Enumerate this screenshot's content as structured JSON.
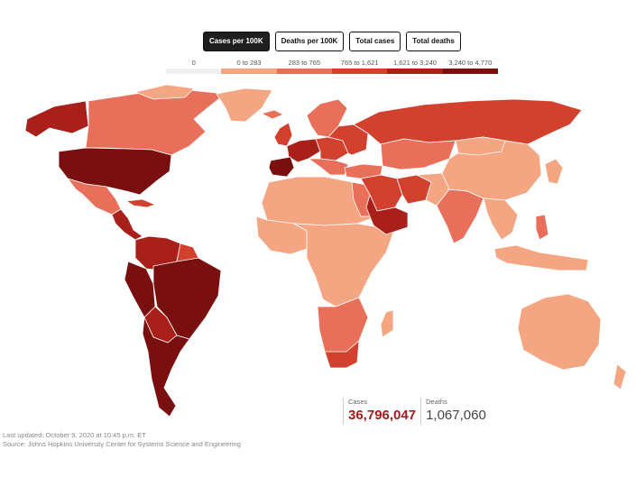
{
  "tabs": [
    {
      "label": "Cases per 100K",
      "active": true
    },
    {
      "label": "Deaths per 100K",
      "active": false
    },
    {
      "label": "Total cases",
      "active": false
    },
    {
      "label": "Total deaths",
      "active": false
    }
  ],
  "legend": {
    "bins": [
      {
        "label": "0",
        "color": "#f0f0f0"
      },
      {
        "label": "0 to 283",
        "color": "#f4a582"
      },
      {
        "label": "283 to 765",
        "color": "#e8705a"
      },
      {
        "label": "765 to 1,621",
        "color": "#d2412e"
      },
      {
        "label": "1,621 to 3,240",
        "color": "#a91f1a"
      },
      {
        "label": "3,240 to 4,770",
        "color": "#7a0f0f"
      }
    ]
  },
  "stats": {
    "cases_label": "Cases",
    "cases_value": "36,796,047",
    "deaths_label": "Deaths",
    "deaths_value": "1,067,060"
  },
  "footer": {
    "updated": "Last updated: October 9, 2020 at 10:45 p.m. ET",
    "source": "Source: Johns Hopkins University Center for Systems Science and Engineering"
  },
  "colors": {
    "bin0": "#f0f0f0",
    "bin1": "#f4a582",
    "bin2": "#e8705a",
    "bin3": "#d2412e",
    "bin4": "#a91f1a",
    "bin5": "#7a0f0f",
    "border": "#ffffff"
  }
}
